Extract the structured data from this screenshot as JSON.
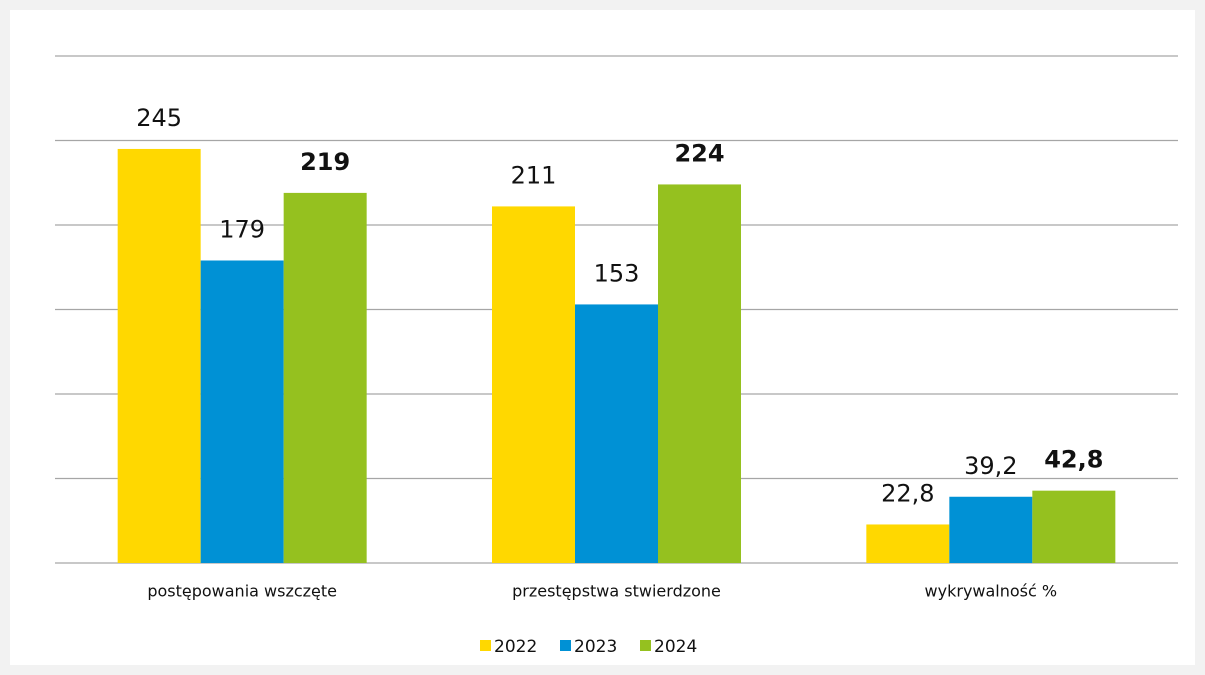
{
  "chart_data": {
    "type": "bar",
    "categories": [
      "postępowania wszczęte",
      "przestępstwa stwierdzone",
      "wykrywalność %"
    ],
    "series": [
      {
        "name": "2022",
        "color": "#ffd800",
        "values": [
          245,
          211,
          22.8
        ],
        "value_labels": [
          "245",
          "211",
          "22,8"
        ]
      },
      {
        "name": "2023",
        "color": "#0091d5",
        "values": [
          179,
          153,
          39.2
        ],
        "value_labels": [
          "179",
          "153",
          "39,2"
        ]
      },
      {
        "name": "2024",
        "color": "#95c11f",
        "values": [
          219,
          224,
          42.8
        ],
        "value_labels": [
          "219",
          "224",
          "42,8"
        ]
      }
    ],
    "ylim": [
      0,
      300
    ],
    "yticks": [
      0,
      50,
      100,
      150,
      200,
      250,
      300
    ],
    "grid": true,
    "legend": "bottom"
  }
}
